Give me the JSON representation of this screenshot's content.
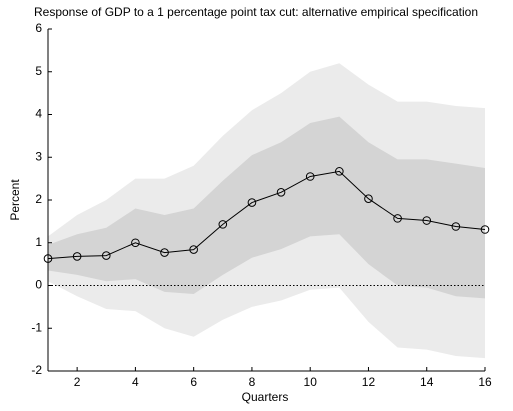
{
  "chart_data": {
    "type": "line",
    "title": "Response of GDP to a 1 percentage point tax cut: alternative empirical specification",
    "x_label": "Quarters",
    "y_label": "Percent",
    "x": [
      1,
      2,
      3,
      4,
      5,
      6,
      7,
      8,
      9,
      10,
      11,
      12,
      13,
      14,
      15,
      16
    ],
    "series": [
      {
        "color": "#000000",
        "values": [
          0.63,
          0.68,
          0.7,
          1.0,
          0.77,
          0.84,
          1.43,
          1.94,
          2.18,
          2.55,
          2.67,
          2.03,
          1.57,
          1.52,
          1.38,
          1.31
        ]
      }
    ],
    "bands": [
      {
        "color": "#ebebeb",
        "upper": [
          1.15,
          1.65,
          2.0,
          2.5,
          2.5,
          2.8,
          3.5,
          4.1,
          4.5,
          5.0,
          5.2,
          4.7,
          4.3,
          4.3,
          4.2,
          4.15
        ],
        "lower": [
          0.1,
          -0.25,
          -0.55,
          -0.6,
          -1.0,
          -1.2,
          -0.8,
          -0.5,
          -0.35,
          -0.1,
          -0.05,
          -0.85,
          -1.45,
          -1.5,
          -1.65,
          -1.7
        ]
      },
      {
        "color": "#d4d4d4",
        "upper": [
          0.95,
          1.2,
          1.35,
          1.8,
          1.65,
          1.8,
          2.45,
          3.05,
          3.35,
          3.8,
          3.95,
          3.35,
          2.95,
          2.95,
          2.85,
          2.75
        ],
        "lower": [
          0.35,
          0.25,
          0.1,
          0.15,
          -0.15,
          -0.2,
          0.25,
          0.65,
          0.85,
          1.15,
          1.2,
          0.5,
          0.0,
          -0.05,
          -0.25,
          -0.3
        ]
      }
    ],
    "reference_line": 0,
    "xlim": [
      1,
      16
    ],
    "xticks": [
      2,
      4,
      6,
      8,
      10,
      12,
      14,
      16
    ],
    "ylim": [
      -2,
      6
    ],
    "yticks": [
      -2,
      -1,
      0,
      1,
      2,
      3,
      4,
      5,
      6
    ]
  }
}
